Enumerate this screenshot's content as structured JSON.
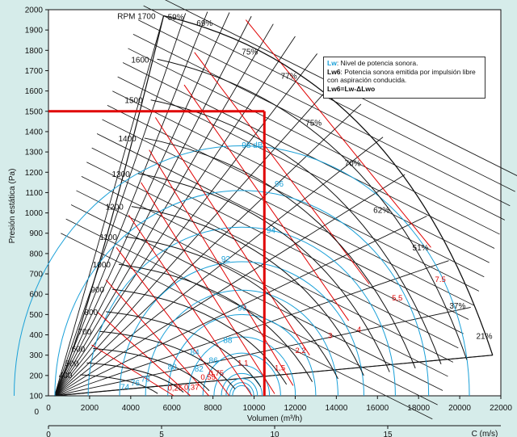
{
  "chart_data": {
    "type": "line",
    "xlabel": "Volumen (m³/h)",
    "ylabel": "Presión estática (Pa)",
    "xlabel2": "C (m/s)",
    "xlim": [
      0,
      22000
    ],
    "ylim": [
      100,
      2000
    ],
    "xticks": [
      "2000",
      "4000",
      "6000",
      "8000",
      "10000",
      "12000",
      "14000",
      "16000",
      "18000",
      "20000",
      "22000"
    ],
    "x_zero": "0",
    "yticks": [
      "100",
      "200",
      "300",
      "400",
      "500",
      "600",
      "700",
      "800",
      "900",
      "1000",
      "1100",
      "1200",
      "1300",
      "1400",
      "1500",
      "1600",
      "1700",
      "1800",
      "1900",
      "2000"
    ],
    "y_zero": "0",
    "x2ticks": [
      "0",
      "5",
      "10",
      "15"
    ],
    "x2lim": [
      0,
      20
    ],
    "rpm_labels": [
      "RPM 1700",
      "1600",
      "1500",
      "1400",
      "1300",
      "1200",
      "1100",
      "1000",
      "900",
      "800",
      "700",
      "600",
      "500",
      "400"
    ],
    "efficiency_labels": [
      "59%",
      "69%",
      "75%",
      "77%",
      "75%",
      "70%",
      "62%",
      "51%",
      "37%",
      "21%"
    ],
    "sound_labels": [
      "98 dB",
      "96",
      "94",
      "92",
      "90",
      "88",
      "86",
      "84",
      "82",
      "80",
      "78",
      "76",
      "74"
    ],
    "power_labels": [
      "7.5",
      "5,5",
      "4",
      "3",
      "2,2",
      "1,5",
      "1,1",
      "0,75",
      "0,55",
      "0,37",
      "0,25"
    ],
    "operating_point": {
      "x": 10500,
      "y": 1500
    },
    "legend": {
      "line1_key": "Lw",
      "line1_text": ": Nivel de potencia sonora.",
      "line2_key": "Lw6",
      "line2_text": ": Potencia sonora emitida por impulsión libre con aspiración conducida.",
      "line3": "Lw6=Lw-ΔLwo"
    },
    "colors": {
      "background": "#d6ecea",
      "grid": "#111111",
      "sound": "#1aa0d8",
      "power": "#e00000",
      "operating": "#e00000"
    }
  }
}
